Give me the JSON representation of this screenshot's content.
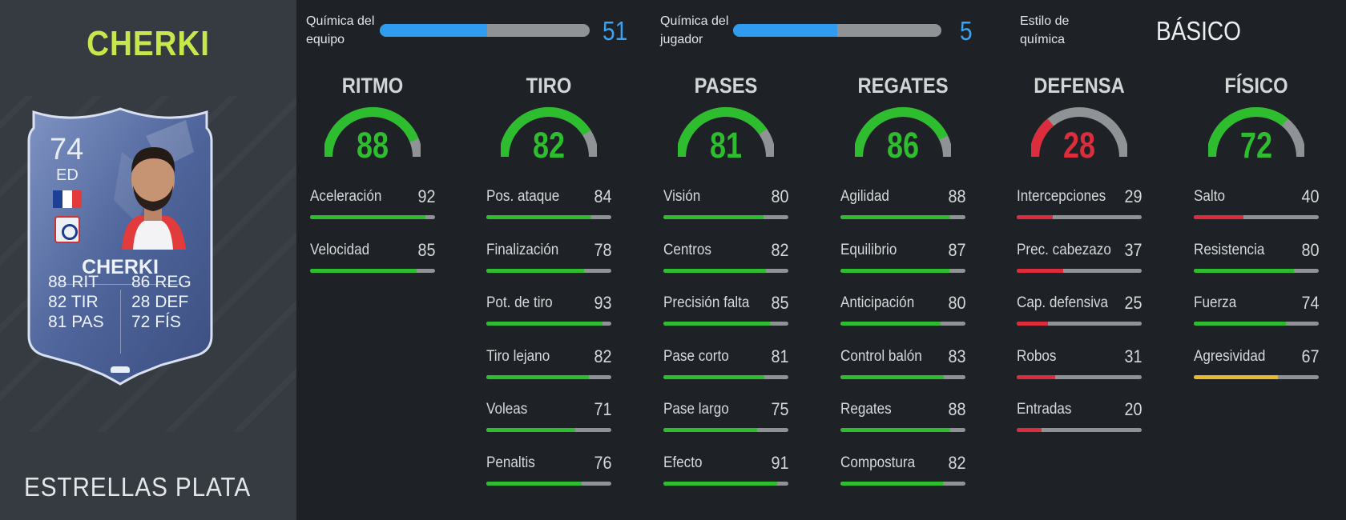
{
  "player": {
    "name_header": "CHERKI",
    "promo": "ESTRELLAS PLATA",
    "card": {
      "rating": "74",
      "position": "ED",
      "name": "CHERKI",
      "stats": [
        {
          "value": "88",
          "label": "RIT"
        },
        {
          "value": "82",
          "label": "TIR"
        },
        {
          "value": "81",
          "label": "PAS"
        },
        {
          "value": "86",
          "label": "REG"
        },
        {
          "value": "28",
          "label": "DEF"
        },
        {
          "value": "72",
          "label": "FÍS"
        }
      ],
      "flag_colors": [
        "#1d3f95",
        "#ffffff",
        "#e33a3a"
      ],
      "icons": [
        "france-flag-icon",
        "lyon-club-badge-icon",
        "boot-icon"
      ]
    }
  },
  "chemistry": {
    "team": {
      "label_line1": "Química del",
      "label_line2": "equipo",
      "value": "51",
      "fill": 0.51
    },
    "player": {
      "label_line1": "Química del",
      "label_line2": "jugador",
      "value": "5",
      "fill": 0.5
    },
    "style": {
      "label_line1": "Estilo de",
      "label_line2": "química",
      "value": "BÁSICO"
    }
  },
  "colors": {
    "accent_blue": "#2f9cf0",
    "good": "#2ebd2e",
    "average": "#e7b92e",
    "poor": "#dd2d3c",
    "track": "#8f9396"
  },
  "categories": [
    {
      "name": "RITMO",
      "value": 88,
      "stats": [
        {
          "label": "Aceleración",
          "value": 92
        },
        {
          "label": "Velocidad",
          "value": 85
        }
      ]
    },
    {
      "name": "TIRO",
      "value": 82,
      "stats": [
        {
          "label": "Pos. ataque",
          "value": 84
        },
        {
          "label": "Finalización",
          "value": 78
        },
        {
          "label": "Pot. de tiro",
          "value": 93
        },
        {
          "label": "Tiro lejano",
          "value": 82
        },
        {
          "label": "Voleas",
          "value": 71
        },
        {
          "label": "Penaltis",
          "value": 76
        }
      ]
    },
    {
      "name": "PASES",
      "value": 81,
      "stats": [
        {
          "label": "Visión",
          "value": 80
        },
        {
          "label": "Centros",
          "value": 82
        },
        {
          "label": "Precisión falta",
          "value": 85
        },
        {
          "label": "Pase corto",
          "value": 81
        },
        {
          "label": "Pase largo",
          "value": 75
        },
        {
          "label": "Efecto",
          "value": 91
        }
      ]
    },
    {
      "name": "REGATES",
      "value": 86,
      "stats": [
        {
          "label": "Agilidad",
          "value": 88
        },
        {
          "label": "Equilibrio",
          "value": 87
        },
        {
          "label": "Anticipación",
          "value": 80
        },
        {
          "label": "Control balón",
          "value": 83
        },
        {
          "label": "Regates",
          "value": 88
        },
        {
          "label": "Compostura",
          "value": 82
        }
      ]
    },
    {
      "name": "DEFENSA",
      "value": 28,
      "stats": [
        {
          "label": "Intercepciones",
          "value": 29
        },
        {
          "label": "Prec. cabezazo",
          "value": 37
        },
        {
          "label": "Cap. defensiva",
          "value": 25
        },
        {
          "label": "Robos",
          "value": 31
        },
        {
          "label": "Entradas",
          "value": 20
        }
      ]
    },
    {
      "name": "FÍSICO",
      "value": 72,
      "stats": [
        {
          "label": "Salto",
          "value": 40
        },
        {
          "label": "Resistencia",
          "value": 80
        },
        {
          "label": "Fuerza",
          "value": 74
        },
        {
          "label": "Agresividad",
          "value": 67
        }
      ]
    }
  ]
}
